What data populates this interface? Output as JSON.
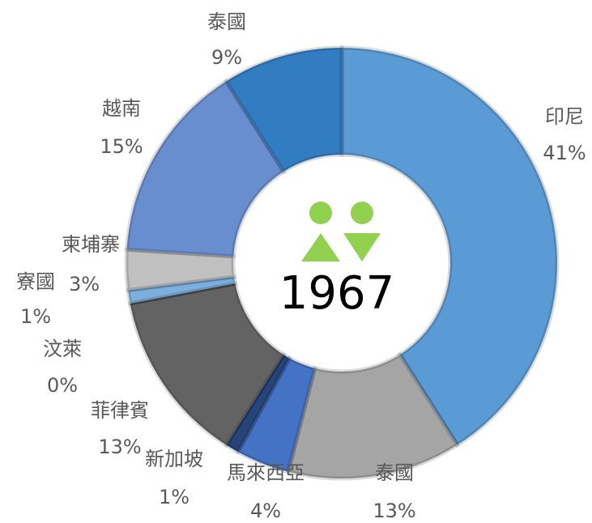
{
  "chart_data": {
    "type": "donut",
    "categories": [
      "印尼",
      "泰國",
      "馬來西亞",
      "新加坡",
      "菲律賓",
      "汶萊",
      "寮國",
      "柬埔寨",
      "越南",
      "泰國"
    ],
    "values": [
      41,
      13,
      4,
      1,
      13,
      0,
      1,
      3,
      15,
      9
    ],
    "value_labels": [
      "41%",
      "13%",
      "4%",
      "1%",
      "13%",
      "0%",
      "1%",
      "3%",
      "15%",
      "9%"
    ],
    "colors": [
      "#5b9bd5",
      "#a5a5a5",
      "#4472c4",
      "#264478",
      "#636363",
      "#7f6000",
      "#7cafdd",
      "#c0c0c0",
      "#698ed0",
      "#327dc2"
    ],
    "center_label": "1967"
  }
}
